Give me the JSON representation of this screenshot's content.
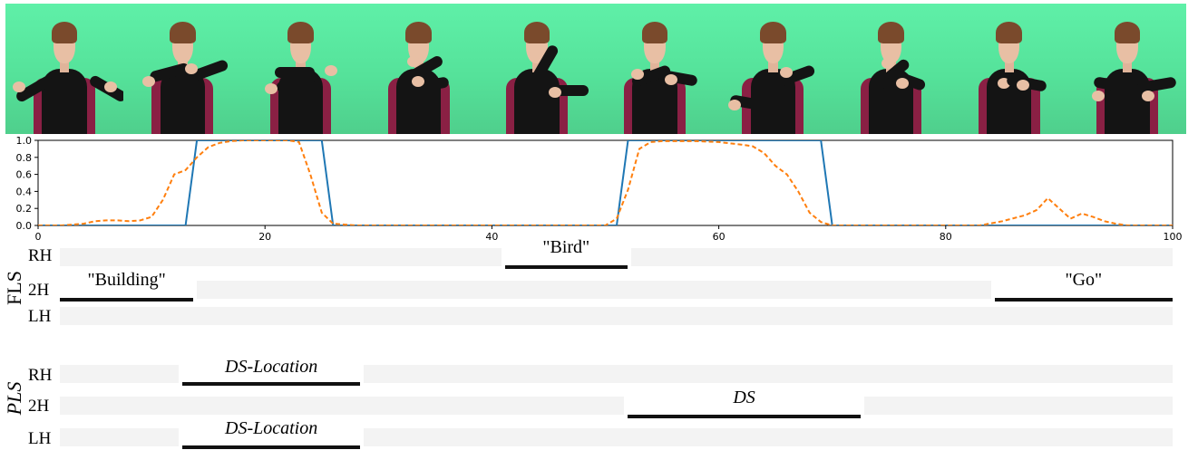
{
  "frames": [
    {
      "pose": "hands-out-low"
    },
    {
      "pose": "hands-forward"
    },
    {
      "pose": "arms-crossed-flat"
    },
    {
      "pose": "hands-chest"
    },
    {
      "pose": "hand-chin"
    },
    {
      "pose": "hands-mid"
    },
    {
      "pose": "arm-low-point"
    },
    {
      "pose": "hands-crossed"
    },
    {
      "pose": "hands-together"
    },
    {
      "pose": "hands-down-forward"
    }
  ],
  "chart_data": {
    "type": "line",
    "xlim": [
      0,
      100
    ],
    "ylim": [
      0.0,
      1.0
    ],
    "xticks": [
      "0",
      "20",
      "40",
      "60",
      "80",
      "100"
    ],
    "yticks": [
      "0.0",
      "0.2",
      "0.4",
      "0.6",
      "0.8",
      "1.0"
    ],
    "grid": false,
    "series": [
      {
        "style": "solid",
        "color": "#1f77b4",
        "x": [
          0,
          13,
          14,
          25,
          26,
          51,
          52,
          69,
          70,
          100
        ],
        "y": [
          0,
          0,
          1,
          1,
          0,
          0,
          1,
          1,
          0,
          0
        ]
      },
      {
        "style": "dashed",
        "color": "#ff7f0e",
        "x": [
          0,
          2,
          4,
          5,
          6,
          7,
          8,
          9,
          10,
          11,
          12,
          13,
          14,
          15,
          16,
          17,
          18,
          19,
          20,
          22,
          23,
          24,
          25,
          26,
          28,
          30,
          40,
          50,
          51,
          52,
          53,
          54,
          55,
          56,
          58,
          60,
          62,
          63,
          64,
          65,
          66,
          67,
          68,
          69,
          70,
          75,
          83,
          85,
          87,
          88,
          89,
          90,
          91,
          92,
          93,
          94,
          95,
          96,
          100
        ],
        "y": [
          0,
          0,
          0.02,
          0.05,
          0.06,
          0.06,
          0.05,
          0.06,
          0.1,
          0.3,
          0.6,
          0.65,
          0.8,
          0.92,
          0.97,
          0.99,
          1,
          1,
          1,
          1,
          0.98,
          0.6,
          0.15,
          0.02,
          0,
          0,
          0,
          0,
          0.08,
          0.42,
          0.9,
          0.98,
          0.99,
          0.99,
          0.99,
          0.98,
          0.95,
          0.93,
          0.85,
          0.7,
          0.6,
          0.4,
          0.15,
          0.04,
          0,
          0,
          0,
          0.05,
          0.12,
          0.18,
          0.32,
          0.2,
          0.08,
          0.14,
          0.1,
          0.05,
          0.02,
          0,
          0
        ]
      }
    ]
  },
  "annotations": {
    "fls": {
      "label": "FLS",
      "rows": [
        {
          "hand": "RH",
          "segments": [
            {
              "text": "\"Bird\"",
              "start": 40,
              "end": 51
            }
          ]
        },
        {
          "hand": "2H",
          "segments": [
            {
              "text": "\"Building\"",
              "start": 0,
              "end": 12
            },
            {
              "text": "\"Go\"",
              "start": 84,
              "end": 100
            }
          ]
        },
        {
          "hand": "LH",
          "segments": []
        }
      ]
    },
    "pls": {
      "label": "PLS",
      "rows": [
        {
          "hand": "RH",
          "segments": [
            {
              "text": "DS-Location",
              "start": 11,
              "end": 27
            }
          ]
        },
        {
          "hand": "2H",
          "segments": [
            {
              "text": "DS",
              "start": 51,
              "end": 72
            }
          ]
        },
        {
          "hand": "LH",
          "segments": [
            {
              "text": "DS-Location",
              "start": 11,
              "end": 27
            }
          ]
        }
      ]
    }
  }
}
